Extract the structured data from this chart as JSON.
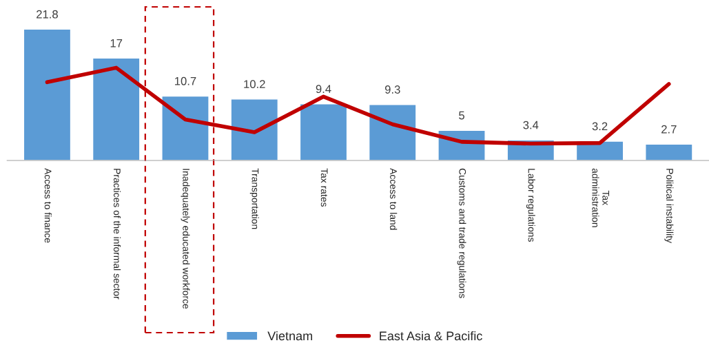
{
  "chart_data": {
    "type": "bar",
    "categories": [
      "Access to finance",
      "Practices of the informal sector",
      "Inadequately educated workforce",
      "Transportation",
      "Tax rates",
      "Access to land",
      "Customs and trade regulations",
      "Labor regulations",
      "Tax\nadministration",
      "Political instability"
    ],
    "series": [
      {
        "name": "Vietnam",
        "color": "#5b9bd5",
        "values": [
          21.8,
          17,
          10.7,
          10.2,
          9.4,
          9.3,
          5,
          3.4,
          3.2,
          2.7
        ],
        "value_labels": [
          "21.8",
          "17",
          "10.7",
          "10.2",
          "9.4",
          "9.3",
          "5",
          "3.4",
          "3.2",
          "2.7"
        ]
      },
      {
        "name": "East Asia & Pacific",
        "type": "line",
        "color": "#c00000",
        "values": [
          13.0,
          15.4,
          6.8,
          4.7,
          10.6,
          6.0,
          3.1,
          2.8,
          2.9,
          12.7
        ]
      }
    ],
    "legend": "bottom",
    "grid": false
  }
}
